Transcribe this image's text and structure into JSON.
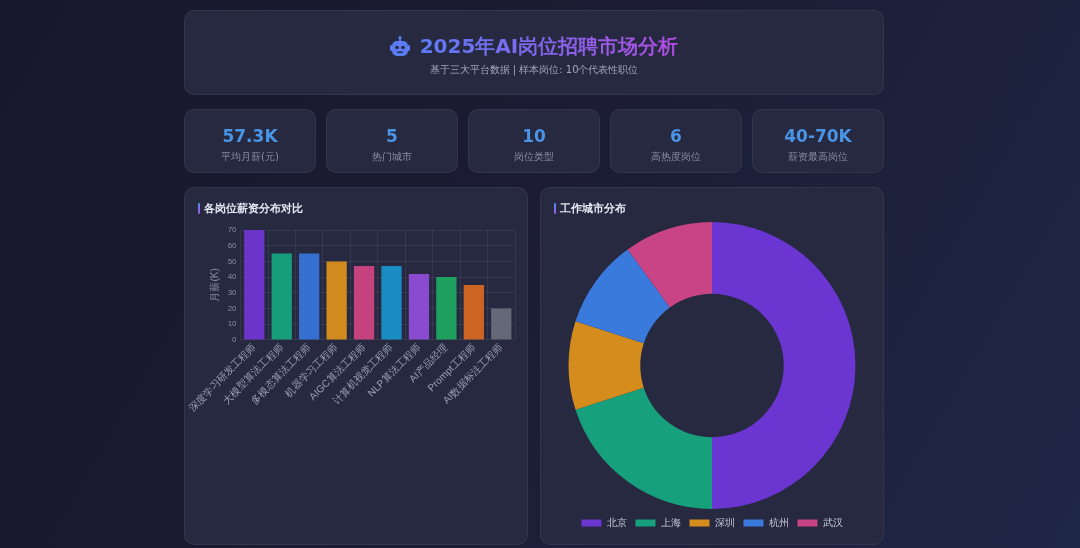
{
  "chart_data": [
    {
      "type": "other",
      "title": "2025年AI岗位招聘市场分析",
      "subtitle": "基于三大平台数据 | 样本岗位: 10个代表性职位",
      "annotations": [
        "57.3K",
        "平均月薪(元)",
        "5",
        "热门城市",
        "10",
        "岗位类型",
        "6",
        "高热度岗位",
        "40-70K",
        "薪资最高岗位"
      ]
    },
    {
      "type": "bar",
      "title": "各岗位薪资分布对比",
      "ylabel": "月薪(K)",
      "categories": [
        "深度学习研发工程师",
        "大模型算法工程师",
        "多模态算法工程师",
        "机器学习工程师",
        "AIGC算法工程师",
        "计算机视觉工程师",
        "NLP算法工程师",
        "AI产品经理",
        "Prompt工程师",
        "AI数据标注工程师"
      ],
      "values": [
        70,
        55,
        55,
        50,
        47,
        47,
        42,
        40,
        35,
        20
      ],
      "colors": [
        "#6c35c9",
        "#169e7a",
        "#3570d0",
        "#d08a1e",
        "#c4437f",
        "#1a8cc4",
        "#8a4bd0",
        "#20a060",
        "#cc6524",
        "#646878"
      ],
      "ylim": [
        0,
        70
      ],
      "yticks": [
        0,
        10,
        20,
        30,
        40,
        50,
        60,
        70
      ],
      "grid": true
    },
    {
      "type": "donut",
      "title": "工作城市分布",
      "categories": [
        "北京",
        "上海",
        "深圳",
        "杭州",
        "武汉"
      ],
      "values": [
        50,
        20,
        10,
        10,
        10
      ],
      "colors": [
        "#6a35d0",
        "#17a07c",
        "#d48c1c",
        "#3a7adc",
        "#c94484"
      ],
      "legend": "bottom"
    }
  ]
}
